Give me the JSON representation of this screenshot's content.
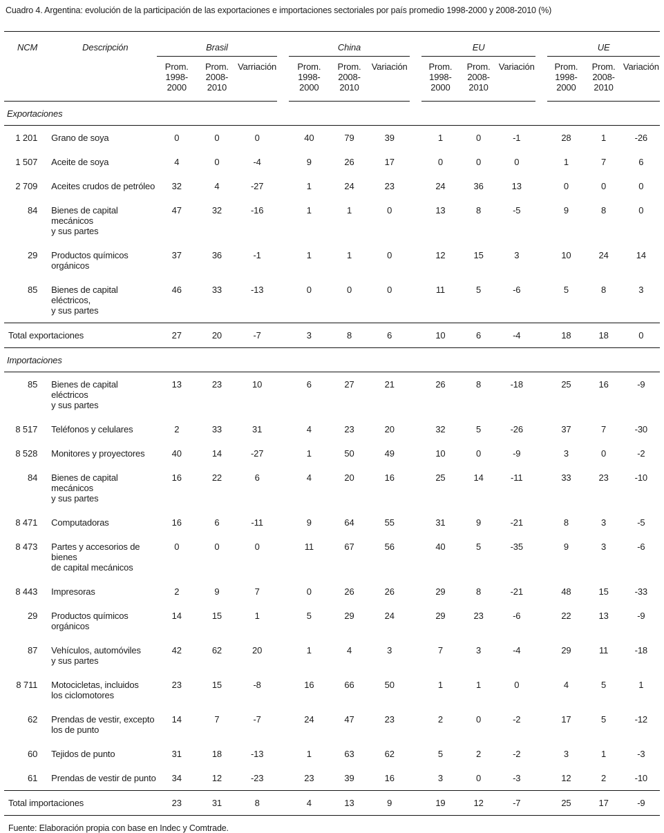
{
  "title": "Cuadro 4. Argentina: evolución de la participación de las exportaciones e importaciones sectoriales por país promedio 1998-2000 y 2008-2010 (%)",
  "table": {
    "col_headers": {
      "ncm": "NCM",
      "descripcion": "Descripción",
      "groups": [
        {
          "name": "Brasil",
          "sub": [
            "Prom.\n1998-\n2000",
            "Prom.\n2008-\n2010",
            "Varriación"
          ]
        },
        {
          "name": "China",
          "sub": [
            "Prom.\n1998-\n2000",
            "Prom.\n2008-\n2010",
            "Variación"
          ]
        },
        {
          "name": "EU",
          "sub": [
            "Prom.\n1998-\n2000",
            "Prom.\n2008-\n2010",
            "Variación"
          ]
        },
        {
          "name": "UE",
          "sub": [
            "Prom.\n1998-\n2000",
            "Prom.\n2008-\n2010",
            "Variación"
          ]
        }
      ]
    },
    "sections": [
      {
        "label": "Exportaciones",
        "rows": [
          {
            "ncm": "1 201",
            "desc": "Grano de soya",
            "values": [
              0,
              0,
              0,
              40,
              79,
              39,
              1,
              0,
              -1,
              28,
              1,
              -26
            ]
          },
          {
            "ncm": "1 507",
            "desc": "Aceite de soya",
            "values": [
              4,
              0,
              -4,
              9,
              26,
              17,
              0,
              0,
              0,
              1,
              7,
              6
            ]
          },
          {
            "ncm": "2 709",
            "desc": "Aceites crudos de petróleo",
            "values": [
              32,
              4,
              -27,
              1,
              24,
              23,
              24,
              36,
              13,
              0,
              0,
              0
            ]
          },
          {
            "ncm": "84",
            "desc": "Bienes de capital mecánicos\ny sus partes",
            "values": [
              47,
              32,
              -16,
              1,
              1,
              0,
              13,
              8,
              -5,
              9,
              8,
              0
            ]
          },
          {
            "ncm": "29",
            "desc": "Productos químicos orgánicos",
            "values": [
              37,
              36,
              -1,
              1,
              1,
              0,
              12,
              15,
              3,
              10,
              24,
              14
            ]
          },
          {
            "ncm": "85",
            "desc": "Bienes de capital eléctricos,\ny sus partes",
            "values": [
              46,
              33,
              -13,
              0,
              0,
              0,
              11,
              5,
              -6,
              5,
              8,
              3
            ]
          }
        ],
        "total": {
          "label": "Total exportaciones",
          "values": [
            27,
            20,
            -7,
            3,
            8,
            6,
            10,
            6,
            -4,
            18,
            18,
            0
          ]
        }
      },
      {
        "label": "Importaciones",
        "rows": [
          {
            "ncm": "85",
            "desc": "Bienes de capital eléctricos\ny sus partes",
            "values": [
              13,
              23,
              10,
              6,
              27,
              21,
              26,
              8,
              -18,
              25,
              16,
              -9
            ]
          },
          {
            "ncm": "8 517",
            "desc": "Teléfonos y celulares",
            "values": [
              2,
              33,
              31,
              4,
              23,
              20,
              32,
              5,
              -26,
              37,
              7,
              -30
            ]
          },
          {
            "ncm": "8 528",
            "desc": "Monitores y proyectores",
            "values": [
              40,
              14,
              -27,
              1,
              50,
              49,
              10,
              0,
              -9,
              3,
              0,
              -2
            ]
          },
          {
            "ncm": "84",
            "desc": "Bienes de capital mecánicos\ny sus partes",
            "values": [
              16,
              22,
              6,
              4,
              20,
              16,
              25,
              14,
              -11,
              33,
              23,
              -10
            ]
          },
          {
            "ncm": "8 471",
            "desc": "Computadoras",
            "values": [
              16,
              6,
              -11,
              9,
              64,
              55,
              31,
              9,
              -21,
              8,
              3,
              -5
            ]
          },
          {
            "ncm": "8 473",
            "desc": "Partes y accesorios de bienes\nde capital mecánicos",
            "values": [
              0,
              0,
              0,
              11,
              67,
              56,
              40,
              5,
              -35,
              9,
              3,
              -6
            ]
          },
          {
            "ncm": "8 443",
            "desc": "Impresoras",
            "values": [
              2,
              9,
              7,
              0,
              26,
              26,
              29,
              8,
              -21,
              48,
              15,
              -33
            ]
          },
          {
            "ncm": "29",
            "desc": "Productos químicos orgánicos",
            "values": [
              14,
              15,
              1,
              5,
              29,
              24,
              29,
              23,
              -6,
              22,
              13,
              -9
            ]
          },
          {
            "ncm": "87",
            "desc": "Vehículos, automóviles\ny sus partes",
            "values": [
              42,
              62,
              20,
              1,
              4,
              3,
              7,
              3,
              -4,
              29,
              11,
              -18
            ]
          },
          {
            "ncm": "8 711",
            "desc": "Motocicletas, incluidos\nlos ciclomotores",
            "values": [
              23,
              15,
              -8,
              16,
              66,
              50,
              1,
              1,
              0,
              4,
              5,
              1
            ]
          },
          {
            "ncm": "62",
            "desc": "Prendas de vestir, excepto\nlos de punto",
            "values": [
              14,
              7,
              -7,
              24,
              47,
              23,
              2,
              0,
              -2,
              17,
              5,
              -12
            ]
          },
          {
            "ncm": "60",
            "desc": "Tejidos de punto",
            "values": [
              31,
              18,
              -13,
              1,
              63,
              62,
              5,
              2,
              -2,
              3,
              1,
              -3
            ]
          },
          {
            "ncm": "61",
            "desc": "Prendas de vestir de punto",
            "values": [
              34,
              12,
              -23,
              23,
              39,
              16,
              3,
              0,
              -3,
              12,
              2,
              -10
            ]
          }
        ],
        "total": {
          "label": "Total importaciones",
          "values": [
            23,
            31,
            8,
            4,
            13,
            9,
            19,
            12,
            -7,
            25,
            17,
            -9
          ]
        }
      }
    ]
  },
  "footer": "Fuente: Elaboración propia con base en Indec y Comtrade."
}
